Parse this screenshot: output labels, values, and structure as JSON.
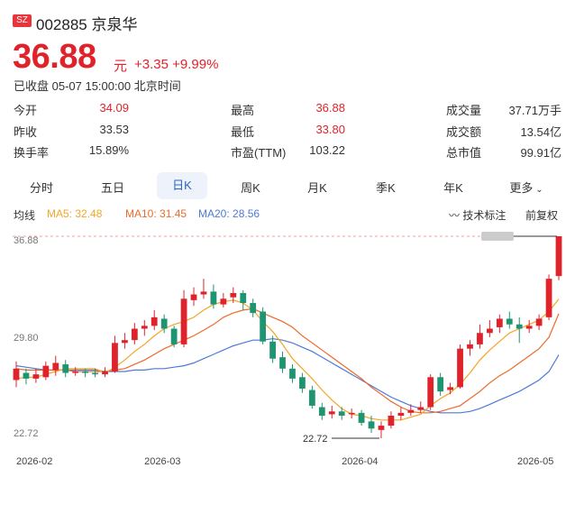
{
  "header": {
    "market_badge": "SZ",
    "stock_code_name": "002885 京泉华",
    "price": "36.88",
    "price_unit": "元",
    "change": "+3.35 +9.99%",
    "status": "已收盘 05-07 15:00:00 北京时间"
  },
  "stats": [
    [
      {
        "label": "今开",
        "value": "34.09",
        "red": true
      },
      {
        "label": "最高",
        "value": "36.88",
        "red": true
      },
      {
        "label": "成交量",
        "value": "37.71万手",
        "red": false
      }
    ],
    [
      {
        "label": "昨收",
        "value": "33.53",
        "red": false
      },
      {
        "label": "最低",
        "value": "33.80",
        "red": true
      },
      {
        "label": "成交额",
        "value": "13.54亿",
        "red": false
      }
    ],
    [
      {
        "label": "换手率",
        "value": "15.89%",
        "red": false
      },
      {
        "label": "市盈(TTM)",
        "value": "103.22",
        "red": false
      },
      {
        "label": "总市值",
        "value": "99.91亿",
        "red": false
      }
    ]
  ],
  "tabs": [
    "分时",
    "五日",
    "日K",
    "周K",
    "月K",
    "季K",
    "年K",
    "更多"
  ],
  "active_tab": 2,
  "ma_bar": {
    "title": "均线",
    "ma5": "MA5: 32.48",
    "ma10": "MA10: 31.45",
    "ma20": "MA20: 28.56",
    "tech_label": "技术标注",
    "adjust_label": "前复权"
  },
  "colors": {
    "up": "#e0232b",
    "down": "#1f9470",
    "ma5": "#f5a524",
    "ma10": "#ee6a2b",
    "ma20": "#4d7ad8"
  },
  "chart_data": {
    "type": "candlestick",
    "y_ticks": [
      "36.88",
      "29.80",
      "22.72"
    ],
    "ylim": [
      22.72,
      36.88
    ],
    "x_ticks": [
      {
        "label": "2026-02",
        "index": 0
      },
      {
        "label": "2026-03",
        "index": 15
      },
      {
        "label": "2026-04",
        "index": 35
      },
      {
        "label": "2026-05",
        "index": 54
      }
    ],
    "max_label": "36.88",
    "min_label": "22.72",
    "min_index": 37,
    "candles": [
      [
        26.8,
        27.6,
        28.1,
        26.3
      ],
      [
        27.3,
        26.9,
        27.6,
        26.5
      ],
      [
        26.9,
        27.2,
        27.6,
        26.6
      ],
      [
        27.0,
        27.8,
        28.1,
        26.8
      ],
      [
        27.5,
        28.0,
        28.5,
        27.1
      ],
      [
        27.9,
        27.3,
        28.2,
        27.0
      ],
      [
        27.3,
        27.4,
        27.7,
        27.1
      ],
      [
        27.4,
        27.3,
        27.6,
        27.0
      ],
      [
        27.3,
        27.2,
        27.6,
        27.0
      ],
      [
        27.2,
        27.4,
        27.7,
        27.0
      ],
      [
        27.4,
        29.4,
        29.9,
        27.3
      ],
      [
        29.4,
        29.6,
        30.1,
        29.0
      ],
      [
        29.6,
        30.4,
        30.8,
        29.3
      ],
      [
        30.4,
        30.6,
        31.0,
        29.9
      ],
      [
        30.6,
        31.2,
        31.7,
        30.3
      ],
      [
        31.1,
        30.4,
        31.4,
        30.1
      ],
      [
        30.4,
        29.3,
        30.6,
        29.1
      ],
      [
        29.3,
        32.5,
        33.1,
        29.1
      ],
      [
        32.4,
        32.8,
        33.3,
        32.0
      ],
      [
        32.8,
        33.0,
        33.9,
        32.5
      ],
      [
        33.0,
        32.1,
        33.5,
        31.8
      ],
      [
        32.1,
        32.5,
        32.9,
        31.9
      ],
      [
        32.6,
        32.9,
        33.3,
        32.2
      ],
      [
        32.9,
        32.2,
        33.1,
        31.7
      ],
      [
        32.2,
        31.5,
        32.5,
        31.2
      ],
      [
        31.6,
        29.5,
        31.9,
        29.3
      ],
      [
        29.5,
        28.3,
        29.9,
        28.0
      ],
      [
        28.4,
        27.6,
        28.8,
        27.3
      ],
      [
        27.6,
        26.9,
        27.9,
        26.6
      ],
      [
        27.0,
        26.2,
        27.3,
        25.9
      ],
      [
        26.1,
        25.0,
        26.4,
        24.8
      ],
      [
        24.9,
        24.3,
        25.2,
        24.0
      ],
      [
        24.4,
        24.6,
        25.0,
        24.1
      ],
      [
        24.6,
        24.3,
        24.9,
        24.0
      ],
      [
        24.4,
        24.5,
        24.8,
        24.1
      ],
      [
        24.5,
        23.8,
        24.7,
        23.6
      ],
      [
        23.9,
        23.4,
        24.3,
        23.1
      ],
      [
        23.3,
        23.6,
        23.9,
        22.72
      ],
      [
        23.6,
        24.3,
        24.6,
        23.4
      ],
      [
        24.3,
        24.5,
        24.9,
        24.0
      ],
      [
        24.5,
        24.7,
        25.1,
        24.3
      ],
      [
        24.7,
        24.9,
        25.3,
        24.5
      ],
      [
        24.9,
        27.0,
        27.2,
        24.7
      ],
      [
        27.0,
        26.0,
        27.3,
        25.7
      ],
      [
        26.1,
        26.3,
        26.6,
        25.8
      ],
      [
        26.3,
        29.0,
        29.3,
        26.2
      ],
      [
        29.0,
        29.3,
        29.6,
        28.5
      ],
      [
        29.3,
        30.1,
        30.7,
        29.0
      ],
      [
        30.1,
        30.4,
        31.0,
        29.8
      ],
      [
        30.5,
        31.1,
        31.4,
        30.1
      ],
      [
        31.1,
        30.7,
        31.6,
        30.4
      ],
      [
        30.7,
        30.4,
        31.2,
        29.4
      ],
      [
        30.4,
        30.6,
        31.0,
        30.1
      ],
      [
        30.6,
        31.1,
        31.4,
        30.3
      ],
      [
        31.2,
        33.9,
        34.2,
        31.0
      ],
      [
        34.09,
        36.88,
        36.88,
        33.8
      ]
    ],
    "ma5": [
      26.9,
      27.0,
      27.0,
      27.2,
      27.4,
      27.6,
      27.6,
      27.6,
      27.6,
      27.3,
      27.7,
      28.2,
      28.8,
      29.3,
      29.9,
      30.4,
      30.7,
      30.9,
      31.2,
      31.7,
      32.1,
      32.3,
      32.4,
      32.2,
      31.7,
      30.9,
      30.2,
      29.3,
      28.3,
      27.6,
      26.9,
      26.1,
      25.4,
      24.8,
      24.4,
      24.3,
      24.1,
      24.0,
      24.0,
      24.0,
      24.2,
      24.4,
      25.0,
      25.5,
      25.9,
      26.5,
      27.3,
      28.2,
      28.9,
      29.5,
      30.1,
      30.4,
      30.7,
      31.0,
      31.6,
      32.48
    ],
    "ma10": [
      27.6,
      27.5,
      27.5,
      27.5,
      27.5,
      27.5,
      27.4,
      27.4,
      27.4,
      27.4,
      27.5,
      27.6,
      27.9,
      28.2,
      28.6,
      29.0,
      29.3,
      29.6,
      29.9,
      30.3,
      30.7,
      31.2,
      31.5,
      31.7,
      31.8,
      31.5,
      31.2,
      30.9,
      30.5,
      29.9,
      29.4,
      28.9,
      28.4,
      27.9,
      27.4,
      26.9,
      26.3,
      25.8,
      25.3,
      24.9,
      24.6,
      24.5,
      24.5,
      24.6,
      24.8,
      25.0,
      25.5,
      26.0,
      26.6,
      27.1,
      27.5,
      28.0,
      28.5,
      29.0,
      29.8,
      31.45
    ],
    "ma20": [
      27.8,
      27.7,
      27.6,
      27.5,
      27.5,
      27.5,
      27.5,
      27.5,
      27.5,
      27.4,
      27.4,
      27.4,
      27.5,
      27.5,
      27.6,
      27.6,
      27.7,
      27.8,
      28.0,
      28.3,
      28.6,
      28.9,
      29.2,
      29.4,
      29.6,
      29.6,
      29.7,
      29.6,
      29.4,
      29.1,
      28.8,
      28.4,
      28.0,
      27.6,
      27.2,
      26.8,
      26.4,
      26.0,
      25.6,
      25.3,
      25.0,
      24.8,
      24.6,
      24.5,
      24.5,
      24.5,
      24.6,
      24.8,
      25.1,
      25.4,
      25.7,
      26.0,
      26.4,
      26.8,
      27.4,
      28.56
    ]
  }
}
